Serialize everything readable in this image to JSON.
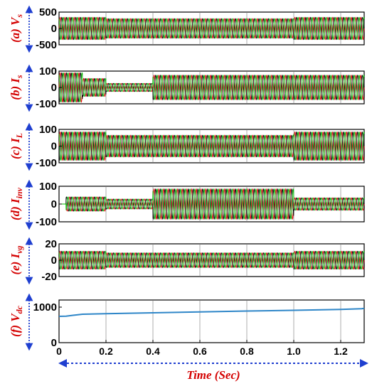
{
  "figure": {
    "xlabel": "Time (Sec)"
  },
  "colors": {
    "label": "#d40000",
    "arrow": "#1f3fd0",
    "phase_a": "#e00000",
    "phase_b": "#000000",
    "phase_c": "#00bb00",
    "vdc": "#2e86c8"
  },
  "chart_data": [
    {
      "type": "line",
      "letter": "(a)",
      "symbol": "V",
      "subscript": "s",
      "ylim": [
        -500,
        500
      ],
      "yticks": [
        500,
        0,
        -500
      ],
      "xlim": [
        0,
        1.3
      ],
      "phases": 3,
      "frequency_hz": 50,
      "envelope": [
        {
          "x0": 0,
          "x1": 0.2,
          "amp": 340
        },
        {
          "x0": 0.2,
          "x1": 1.0,
          "amp": 300
        },
        {
          "x0": 1.0,
          "x1": 1.3,
          "amp": 340
        }
      ]
    },
    {
      "type": "line",
      "letter": "(b)",
      "symbol": "I",
      "subscript": "s",
      "ylim": [
        -100,
        100
      ],
      "yticks": [
        100,
        0,
        -100
      ],
      "xlim": [
        0,
        1.3
      ],
      "phases": 3,
      "frequency_hz": 50,
      "envelope": [
        {
          "x0": 0,
          "x1": 0.1,
          "amp": 90
        },
        {
          "x0": 0.1,
          "x1": 0.2,
          "amp": 55
        },
        {
          "x0": 0.2,
          "x1": 0.4,
          "amp": 25
        },
        {
          "x0": 0.4,
          "x1": 1.0,
          "amp": 75
        },
        {
          "x0": 1.0,
          "x1": 1.3,
          "amp": 75
        }
      ]
    },
    {
      "type": "line",
      "letter": "(c)",
      "symbol": "I",
      "subscript": "L",
      "ylim": [
        -100,
        100
      ],
      "yticks": [
        100,
        0,
        -100
      ],
      "xlim": [
        0,
        1.3
      ],
      "phases": 3,
      "frequency_hz": 50,
      "envelope": [
        {
          "x0": 0,
          "x1": 0.2,
          "amp": 85
        },
        {
          "x0": 0.2,
          "x1": 1.0,
          "amp": 65
        },
        {
          "x0": 1.0,
          "x1": 1.3,
          "amp": 85
        }
      ]
    },
    {
      "type": "line",
      "letter": "(d)",
      "symbol": "I",
      "subscript": "inv",
      "ylim": [
        -100,
        100
      ],
      "yticks": [
        100,
        0,
        -100
      ],
      "xlim": [
        0,
        1.3
      ],
      "phases": 3,
      "frequency_hz": 50,
      "envelope": [
        {
          "x0": 0,
          "x1": 0.03,
          "amp": 0
        },
        {
          "x0": 0.03,
          "x1": 0.2,
          "amp": 40
        },
        {
          "x0": 0.2,
          "x1": 0.4,
          "amp": 28
        },
        {
          "x0": 0.4,
          "x1": 1.0,
          "amp": 85
        },
        {
          "x0": 1.0,
          "x1": 1.3,
          "amp": 35
        }
      ]
    },
    {
      "type": "line",
      "letter": "(e)",
      "symbol": "I",
      "subscript": "vg",
      "ylim": [
        -20,
        20
      ],
      "yticks": [
        20,
        0,
        -20
      ],
      "xlim": [
        0,
        1.3
      ],
      "phases": 3,
      "frequency_hz": 50,
      "envelope": [
        {
          "x0": 0,
          "x1": 0.2,
          "amp": 11
        },
        {
          "x0": 0.2,
          "x1": 1.0,
          "amp": 9
        },
        {
          "x0": 1.0,
          "x1": 1.3,
          "amp": 11
        }
      ]
    },
    {
      "type": "line",
      "letter": "(f)",
      "symbol": "V",
      "subscript": "dc",
      "ylim": [
        0,
        1200
      ],
      "yticks": [
        1000,
        0
      ],
      "xlim": [
        0,
        1.3
      ],
      "xticks": [
        0,
        0.2,
        0.4,
        0.6,
        0.8,
        1.0,
        1.2
      ],
      "xticklabels": [
        "0",
        "0.2",
        "0.4",
        "0.6",
        "0.8",
        "1.0",
        "1.2"
      ],
      "x": [
        0,
        0.03,
        0.06,
        0.1,
        0.2,
        0.4,
        0.6,
        0.8,
        1.0,
        1.2,
        1.29,
        1.3
      ],
      "y": [
        740,
        745,
        770,
        800,
        815,
        840,
        865,
        890,
        910,
        935,
        955,
        965
      ]
    }
  ]
}
